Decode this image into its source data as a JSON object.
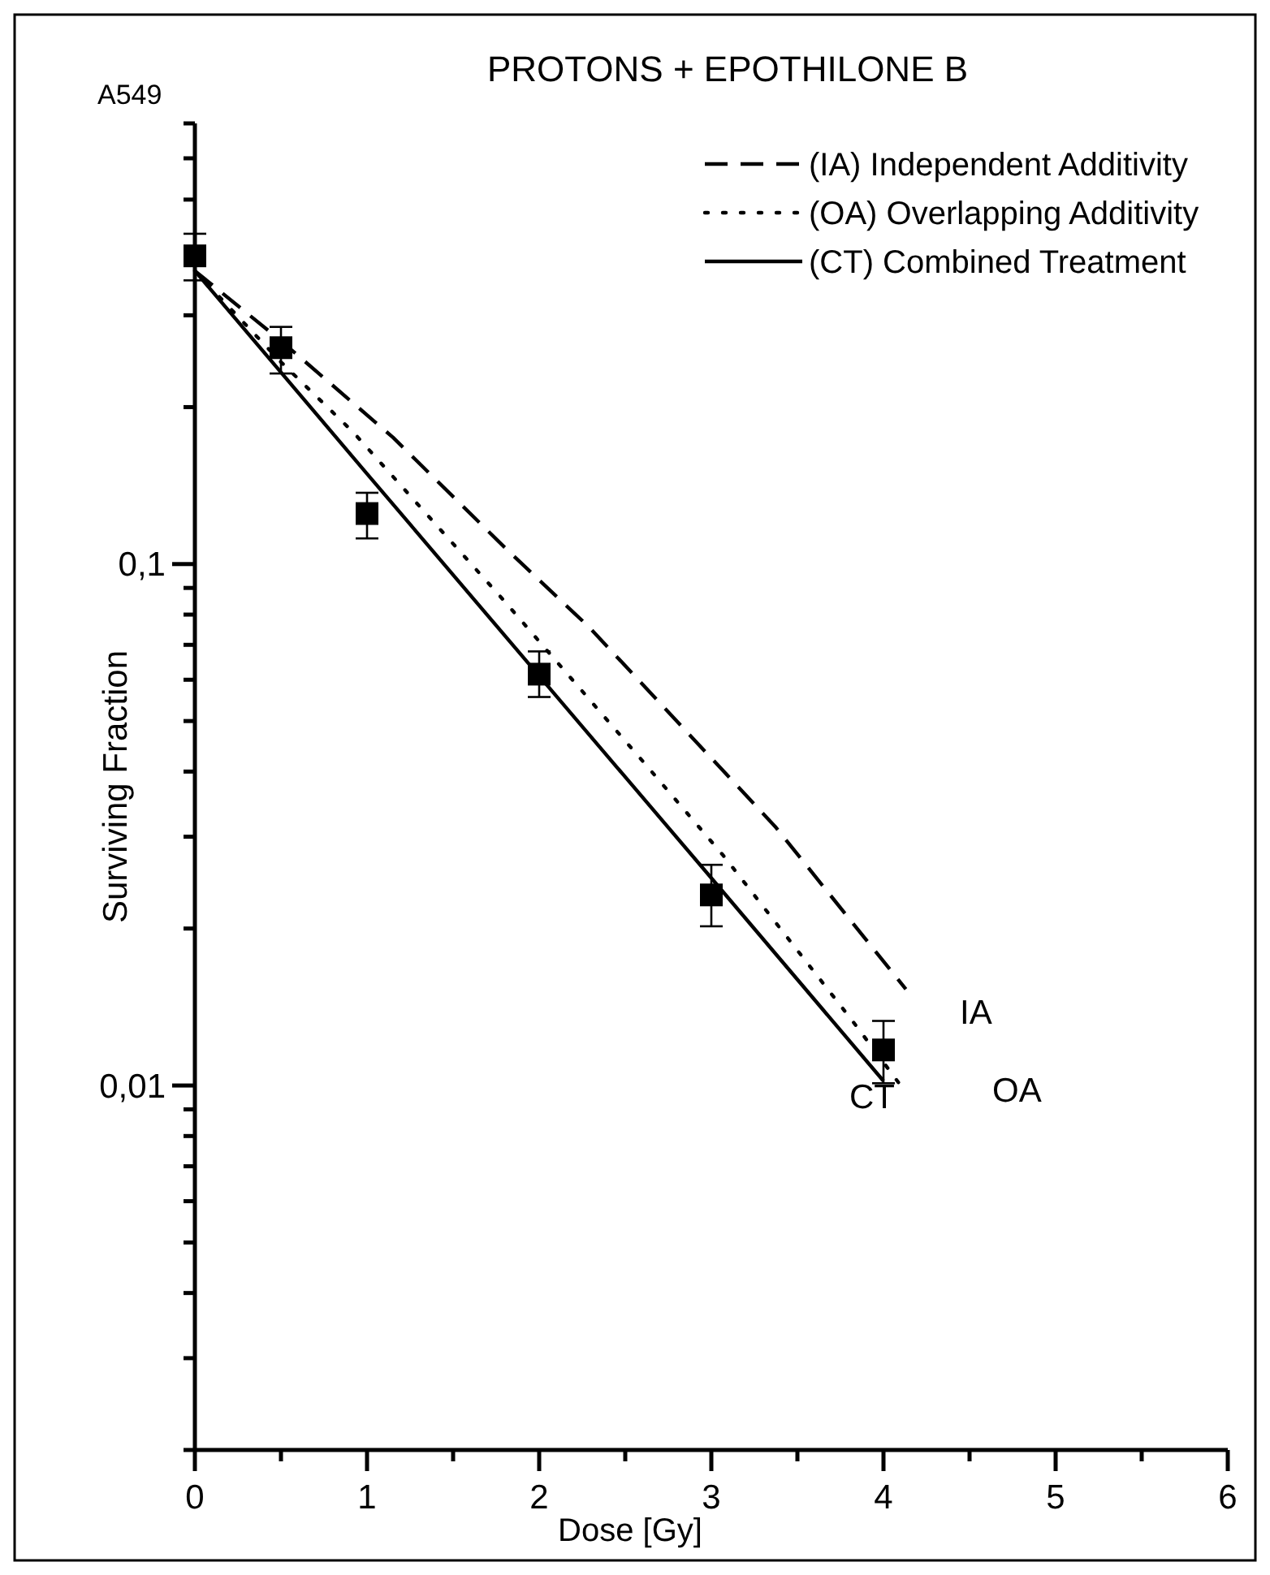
{
  "chart_data": {
    "type": "line",
    "title": "PROTONS + EPOTHILONE B",
    "xlabel": "Dose [Gy]",
    "ylabel": "Surviving Fraction",
    "log": "y",
    "xlim": [
      0,
      6
    ],
    "ylim": [
      0.002,
      0.7
    ],
    "xticks": [
      0,
      {
        "value": 0.5,
        "label": null
      },
      1,
      {
        "value": 1.5,
        "label": null
      },
      2,
      {
        "value": 2.5,
        "label": null
      },
      3,
      {
        "value": 3.5,
        "label": null
      },
      4,
      {
        "value": 4.5,
        "label": null
      },
      5,
      {
        "value": 5.5,
        "label": null
      },
      6
    ],
    "yticks": [
      {
        "value": 0.002,
        "label": null
      },
      {
        "value": 0.003,
        "label": null
      },
      {
        "value": 0.004,
        "label": null
      },
      {
        "value": 0.005,
        "label": null
      },
      {
        "value": 0.006,
        "label": null
      },
      {
        "value": 0.007,
        "label": null
      },
      {
        "value": 0.008,
        "label": null
      },
      {
        "value": 0.009,
        "label": null
      },
      {
        "value": 0.01,
        "label": "0,01"
      },
      {
        "value": 0.02,
        "label": null
      },
      {
        "value": 0.03,
        "label": null
      },
      {
        "value": 0.04,
        "label": null
      },
      {
        "value": 0.05,
        "label": null
      },
      {
        "value": 0.06,
        "label": null
      },
      {
        "value": 0.07,
        "label": null
      },
      {
        "value": 0.08,
        "label": null
      },
      {
        "value": 0.09,
        "label": null
      },
      {
        "value": 0.1,
        "label": "0,1"
      },
      {
        "value": 0.2,
        "label": null
      },
      {
        "value": 0.3,
        "label": null
      },
      {
        "value": 0.4,
        "label": null
      },
      {
        "value": 0.5,
        "label": null
      },
      {
        "value": 0.6,
        "label": null
      },
      {
        "value": 0.7,
        "label": null
      }
    ],
    "grid": false,
    "legend": "top right",
    "series": [
      {
        "name": "(IA) Independent Additivity",
        "line_style": "dashed",
        "color": "#000000",
        "x": [
          0,
          0.5,
          1.15,
          1.82,
          2.29,
          3.37,
          4.13
        ],
        "values": [
          0.365,
          0.268,
          0.175,
          0.106,
          0.0757,
          0.0314,
          0.0153
        ]
      },
      {
        "name": "(OA) Overlapping Additivity",
        "line_style": "dotted",
        "color": "#000000",
        "x": [
          0,
          0.5,
          0.92,
          1.79,
          2.62,
          3.07,
          3.82,
          4.12
        ],
        "values": [
          0.365,
          0.244,
          0.179,
          0.0855,
          0.0412,
          0.0276,
          0.0133,
          0.0098
        ]
      },
      {
        "name": "(CT) Combined Treatment",
        "line_style": "solid",
        "color": "#000000",
        "x": [
          0,
          1,
          2,
          3,
          4
        ],
        "values": [
          0.365,
          0.149,
          0.061,
          0.025,
          0.0102
        ]
      },
      {
        "type": "scatter",
        "marker": "square",
        "color": "#000000",
        "x": [
          0,
          0.5,
          1,
          2,
          3,
          4
        ],
        "values": [
          0.39,
          0.26,
          0.125,
          0.0615,
          0.0232,
          0.0117
        ],
        "errors": [
          [
            0.35,
            0.43
          ],
          [
            0.232,
            0.285
          ],
          [
            0.112,
            0.137
          ],
          [
            0.0556,
            0.068
          ],
          [
            0.0202,
            0.0265
          ],
          [
            0.0101,
            0.0133
          ]
        ]
      }
    ],
    "annotations": [
      "A549",
      "IA",
      "OA",
      "CT"
    ]
  }
}
